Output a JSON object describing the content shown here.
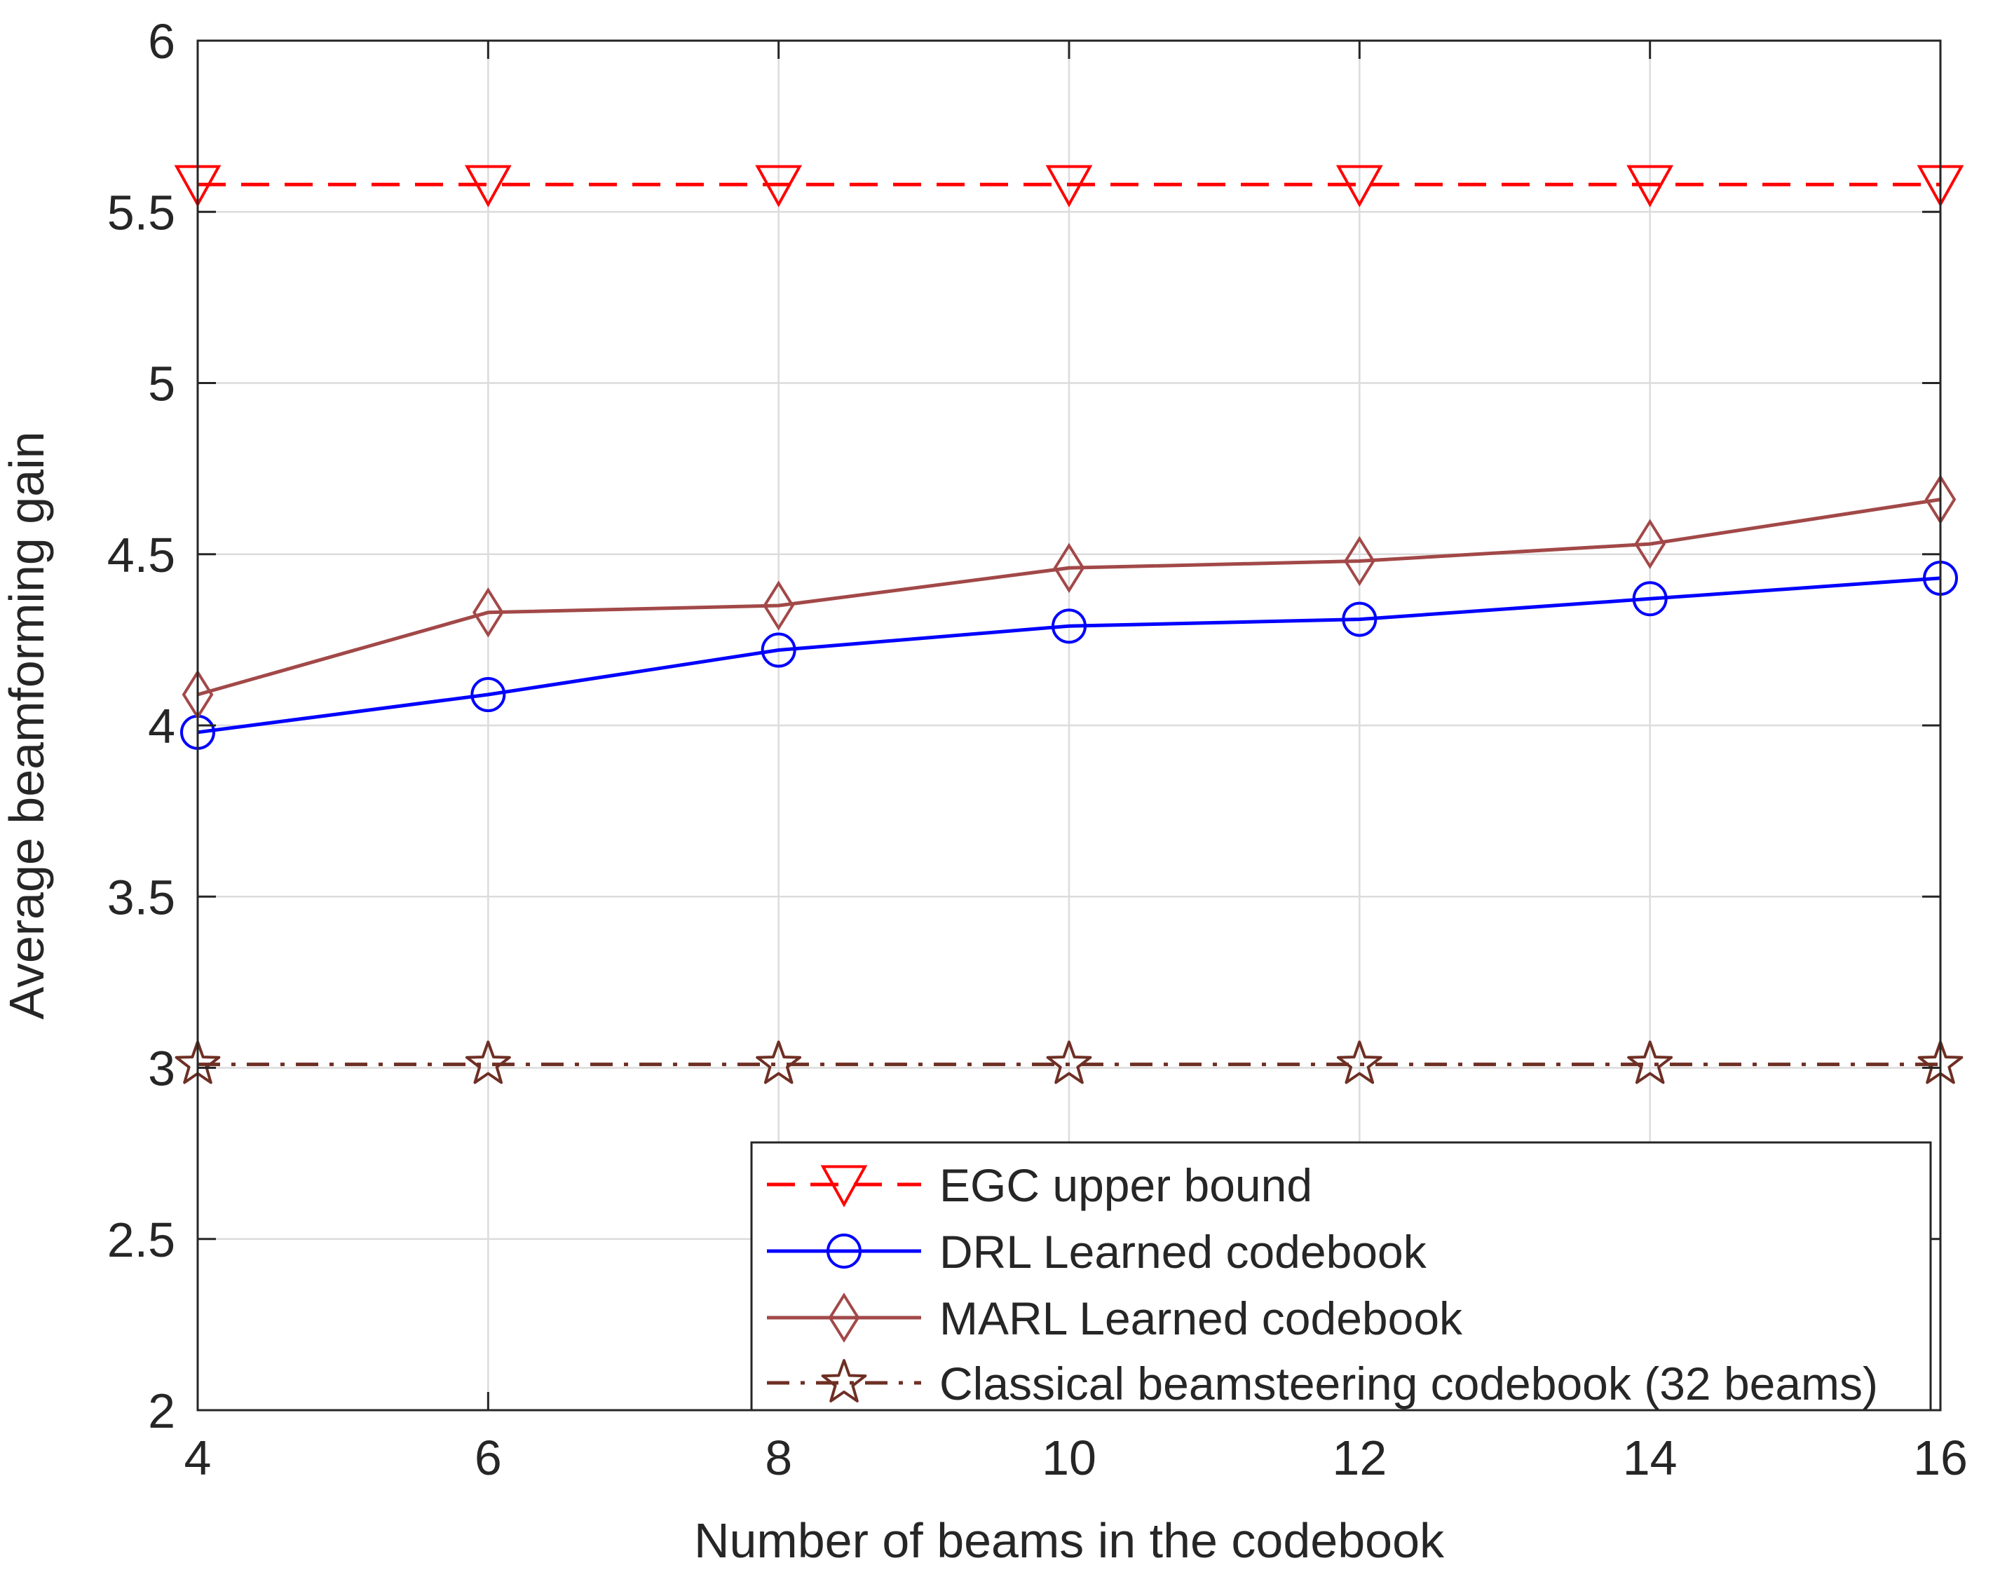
{
  "chart_data": {
    "type": "line",
    "title": "",
    "xlabel": "Number of beams in the codebook",
    "ylabel": "Average beamforming gain",
    "x": [
      4,
      6,
      8,
      10,
      12,
      14,
      16
    ],
    "xlim": [
      4,
      16
    ],
    "ylim": [
      2,
      6
    ],
    "xticks": [
      4,
      6,
      8,
      10,
      12,
      14,
      16
    ],
    "xtick_labels": [
      "4",
      "6",
      "8",
      "10",
      "12",
      "14",
      "16"
    ],
    "yticks": [
      2,
      2.5,
      3,
      3.5,
      4,
      4.5,
      5,
      5.5,
      6
    ],
    "ytick_labels": [
      "2",
      "2.5",
      "3",
      "3.5",
      "4",
      "4.5",
      "5",
      "5.5",
      "6"
    ],
    "grid": true,
    "legend_position": "bottom-right",
    "series": [
      {
        "name": "EGC upper bound",
        "values": [
          5.58,
          5.58,
          5.58,
          5.58,
          5.58,
          5.58,
          5.58
        ],
        "color": "#ff0000",
        "line_style": "dashed",
        "marker": "triangle-down"
      },
      {
        "name": "DRL Learned codebook",
        "values": [
          3.98,
          4.09,
          4.22,
          4.29,
          4.31,
          4.37,
          4.43
        ],
        "color": "#0000ff",
        "line_style": "solid",
        "marker": "circle"
      },
      {
        "name": "MARL Learned codebook",
        "values": [
          4.09,
          4.33,
          4.35,
          4.46,
          4.48,
          4.53,
          4.66
        ],
        "color": "#a24848",
        "line_style": "solid",
        "marker": "diamond"
      },
      {
        "name": "Classical beamsteering codebook (32 beams)",
        "values": [
          3.01,
          3.01,
          3.01,
          3.01,
          3.01,
          3.01,
          3.01
        ],
        "color": "#6e2f24",
        "line_style": "dashdot",
        "marker": "star"
      }
    ]
  }
}
